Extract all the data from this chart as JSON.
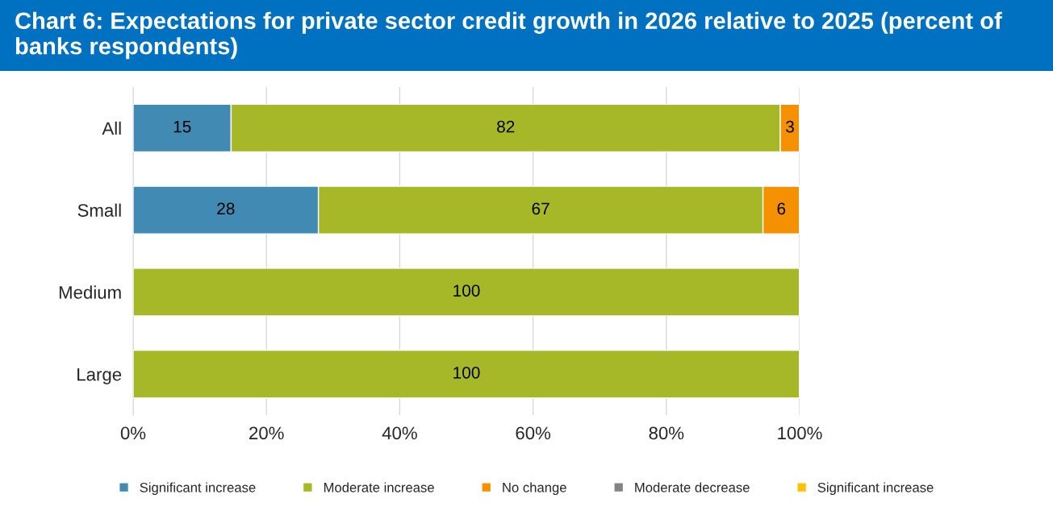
{
  "chart_data": {
    "type": "bar",
    "orientation": "horizontal",
    "stacked": true,
    "title": "Chart 6: Expectations for private sector credit growth in 2026 relative to 2025 (percent of banks respondents)",
    "categories": [
      "All",
      "Small",
      "Medium",
      "Large"
    ],
    "series": [
      {
        "name": "Significant increase",
        "color": "#418ab3",
        "values": [
          14.7,
          27.8,
          null,
          null
        ],
        "value_labels": [
          "15",
          "28",
          null,
          null
        ]
      },
      {
        "name": "Moderate increase",
        "color": "#a6b727",
        "values": [
          82.4,
          66.7,
          100,
          100
        ],
        "value_labels": [
          "82",
          "67",
          "100",
          "100"
        ]
      },
      {
        "name": "No change",
        "color": "#f59101",
        "values": [
          2.9,
          5.5,
          null,
          null
        ],
        "value_labels": [
          "3",
          "6",
          null,
          null
        ]
      },
      {
        "name": "Moderate decrease",
        "color": "#838383",
        "values": [
          null,
          null,
          null,
          null
        ]
      },
      {
        "name": "Significant increase",
        "color": "#fdc100",
        "values": [
          null,
          null,
          null,
          null
        ]
      }
    ],
    "xlim": [
      0,
      100
    ],
    "xticks": [
      {
        "value": 0,
        "label": "0%"
      },
      {
        "value": 20,
        "label": "20%"
      },
      {
        "value": 40,
        "label": "40%"
      },
      {
        "value": 60,
        "label": "60%"
      },
      {
        "value": 80,
        "label": "80%"
      },
      {
        "value": 100,
        "label": "100%"
      }
    ],
    "grid": "x",
    "legend": "bottom"
  }
}
